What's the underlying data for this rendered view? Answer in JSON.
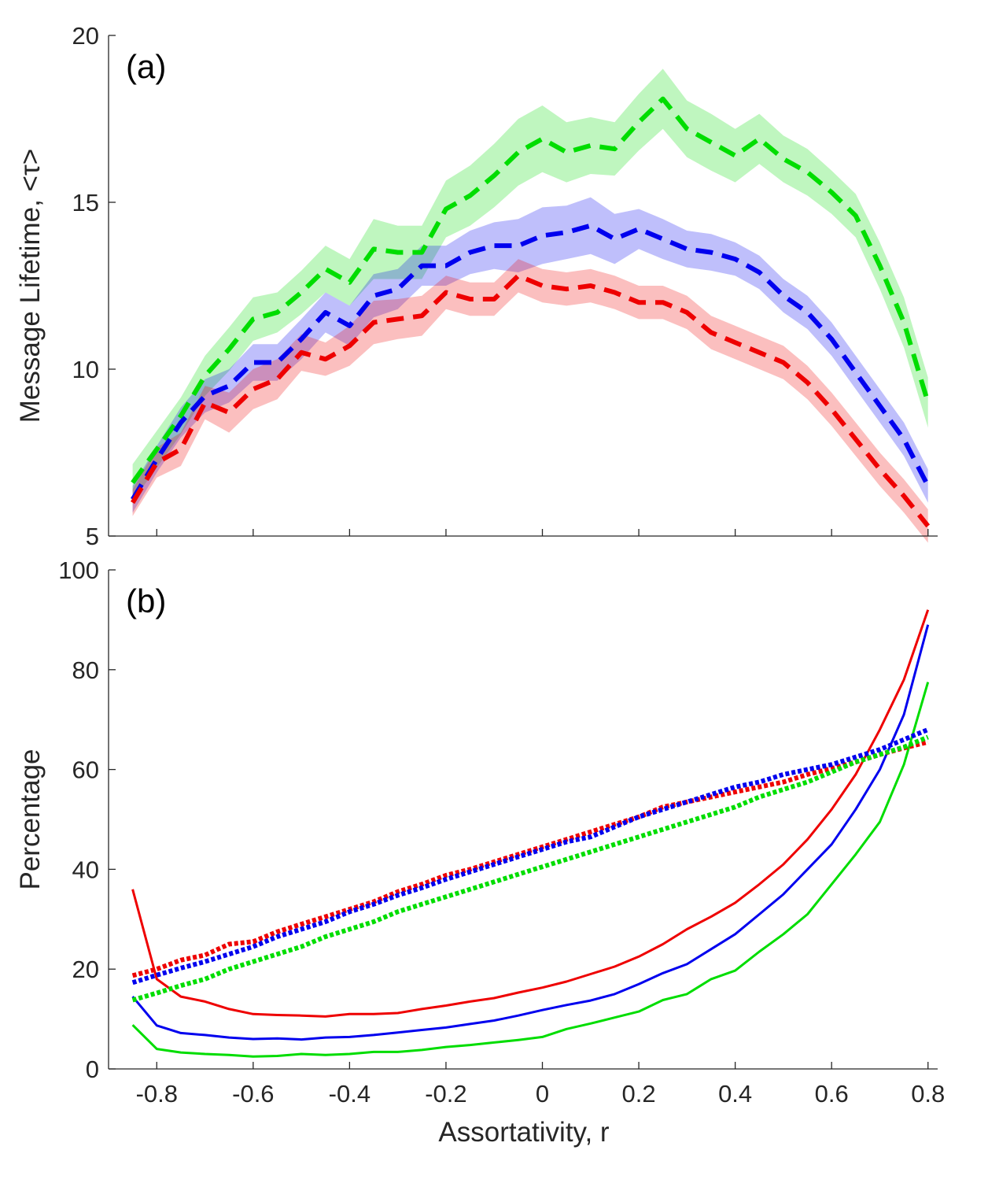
{
  "chart_data": [
    {
      "type": "line",
      "panel_label": "(a)",
      "xlabel": "",
      "ylabel": "Message Lifetime, <τ>",
      "xlim": [
        -0.9,
        0.82
      ],
      "ylim": [
        5,
        20
      ],
      "yticks": [
        5,
        10,
        15,
        20
      ],
      "ytick_labels": [
        "5",
        "10",
        "15",
        "20"
      ],
      "grid": false,
      "x": [
        -0.85,
        -0.8,
        -0.75,
        -0.7,
        -0.65,
        -0.6,
        -0.55,
        -0.5,
        -0.45,
        -0.4,
        -0.35,
        -0.3,
        -0.25,
        -0.2,
        -0.15,
        -0.1,
        -0.05,
        0,
        0.05,
        0.1,
        0.15,
        0.2,
        0.25,
        0.3,
        0.35,
        0.4,
        0.45,
        0.5,
        0.55,
        0.6,
        0.65,
        0.7,
        0.75,
        0.8
      ],
      "series": [
        {
          "name": "green dashed",
          "color": "#00dd00",
          "style": "dashed",
          "values": [
            6.6,
            7.6,
            8.6,
            9.8,
            10.6,
            11.5,
            11.7,
            12.3,
            13.0,
            12.6,
            13.6,
            13.5,
            13.5,
            14.8,
            15.2,
            15.8,
            16.5,
            16.9,
            16.5,
            16.7,
            16.6,
            17.4,
            18.1,
            17.2,
            16.8,
            16.4,
            16.9,
            16.3,
            15.9,
            15.3,
            14.6,
            13.1,
            11.4,
            9.0
          ],
          "band_half_width": [
            0.55,
            0.55,
            0.55,
            0.6,
            0.65,
            0.65,
            0.6,
            0.65,
            0.7,
            0.7,
            0.9,
            0.8,
            0.8,
            0.85,
            0.9,
            0.95,
            1.0,
            1.0,
            0.9,
            0.85,
            0.8,
            0.85,
            0.9,
            0.85,
            0.85,
            0.8,
            0.75,
            0.7,
            0.7,
            0.65,
            0.65,
            0.7,
            0.75,
            0.75
          ]
        },
        {
          "name": "blue dashed",
          "color": "#0000ee",
          "style": "dashed",
          "values": [
            6.1,
            7.3,
            8.4,
            9.2,
            9.5,
            10.2,
            10.2,
            10.9,
            11.7,
            11.3,
            12.2,
            12.4,
            13.1,
            13.1,
            13.5,
            13.7,
            13.7,
            14.0,
            14.1,
            14.3,
            13.9,
            14.2,
            13.9,
            13.6,
            13.5,
            13.3,
            12.9,
            12.2,
            11.7,
            10.9,
            9.9,
            8.9,
            7.9,
            6.5
          ],
          "band_half_width": [
            0.4,
            0.4,
            0.45,
            0.5,
            0.5,
            0.55,
            0.55,
            0.6,
            0.6,
            0.6,
            0.65,
            0.6,
            0.6,
            0.6,
            0.65,
            0.7,
            0.8,
            0.85,
            0.8,
            0.85,
            0.75,
            0.6,
            0.6,
            0.55,
            0.55,
            0.5,
            0.5,
            0.5,
            0.5,
            0.5,
            0.5,
            0.5,
            0.5,
            0.5
          ]
        },
        {
          "name": "red dashed",
          "color": "#ee0000",
          "style": "dashed",
          "values": [
            6.0,
            7.2,
            7.6,
            9.0,
            8.7,
            9.4,
            9.7,
            10.5,
            10.3,
            10.7,
            11.4,
            11.5,
            11.6,
            12.3,
            12.1,
            12.1,
            12.8,
            12.5,
            12.4,
            12.5,
            12.3,
            12.0,
            12.0,
            11.7,
            11.1,
            10.8,
            10.5,
            10.2,
            9.6,
            8.8,
            7.9,
            7.0,
            6.2,
            5.3
          ],
          "band_half_width": [
            0.4,
            0.45,
            0.5,
            0.5,
            0.6,
            0.6,
            0.6,
            0.55,
            0.5,
            0.6,
            0.65,
            0.6,
            0.6,
            0.5,
            0.5,
            0.5,
            0.5,
            0.5,
            0.5,
            0.5,
            0.5,
            0.5,
            0.5,
            0.5,
            0.5,
            0.5,
            0.5,
            0.5,
            0.5,
            0.5,
            0.5,
            0.5,
            0.5,
            0.5
          ]
        }
      ]
    },
    {
      "type": "line",
      "panel_label": "(b)",
      "xlabel": "Assortativity, r",
      "ylabel": "Percentage",
      "xlim": [
        -0.9,
        0.82
      ],
      "ylim": [
        0,
        100
      ],
      "xticks": [
        -0.8,
        -0.6,
        -0.4,
        -0.2,
        0,
        0.2,
        0.4,
        0.6,
        0.8
      ],
      "xtick_labels": [
        "-0.8",
        "-0.6",
        "-0.4",
        "-0.2",
        "0",
        "0.2",
        "0.4",
        "0.6",
        "0.8"
      ],
      "yticks": [
        0,
        20,
        40,
        60,
        80,
        100
      ],
      "ytick_labels": [
        "0",
        "20",
        "40",
        "60",
        "80",
        "100"
      ],
      "grid": false,
      "x": [
        -0.85,
        -0.8,
        -0.75,
        -0.7,
        -0.65,
        -0.6,
        -0.55,
        -0.5,
        -0.45,
        -0.4,
        -0.35,
        -0.3,
        -0.25,
        -0.2,
        -0.15,
        -0.1,
        -0.05,
        0,
        0.05,
        0.1,
        0.15,
        0.2,
        0.25,
        0.3,
        0.35,
        0.4,
        0.45,
        0.5,
        0.55,
        0.6,
        0.65,
        0.7,
        0.75,
        0.8
      ],
      "series": [
        {
          "name": "red solid",
          "color": "#ee0000",
          "style": "solid",
          "values": [
            36,
            18,
            14.5,
            13.5,
            12,
            11,
            10.8,
            10.7,
            10.5,
            11,
            11,
            11.2,
            12,
            12.7,
            13.5,
            14.2,
            15.3,
            16.3,
            17.5,
            19,
            20.5,
            22.5,
            25,
            28,
            30.5,
            33.3,
            37,
            41,
            46,
            52,
            59,
            68,
            78,
            92
          ]
        },
        {
          "name": "blue solid",
          "color": "#0000ee",
          "style": "solid",
          "values": [
            14.5,
            8.7,
            7.2,
            6.8,
            6.3,
            6,
            6.1,
            5.9,
            6.3,
            6.4,
            6.8,
            7.3,
            7.8,
            8.3,
            9,
            9.7,
            10.7,
            11.8,
            12.8,
            13.7,
            15,
            17,
            19.2,
            21,
            24,
            27,
            31,
            35,
            40,
            45,
            52,
            60,
            71,
            89
          ]
        },
        {
          "name": "green solid",
          "color": "#00dd00",
          "style": "solid",
          "values": [
            8.8,
            4,
            3.3,
            3,
            2.8,
            2.5,
            2.6,
            3,
            2.8,
            3,
            3.4,
            3.4,
            3.8,
            4.4,
            4.8,
            5.3,
            5.8,
            6.4,
            8,
            9.1,
            10.3,
            11.5,
            13.8,
            15,
            18,
            19.7,
            23.5,
            27,
            31,
            37,
            43,
            49.5,
            61,
            77.5
          ]
        },
        {
          "name": "red dotted",
          "color": "#ee0000",
          "style": "dotted",
          "values": [
            18.7,
            20,
            21.8,
            22.8,
            25,
            25.5,
            27.5,
            29,
            30.5,
            32,
            33.5,
            35.5,
            37,
            38.8,
            40,
            41.5,
            43,
            44.5,
            46,
            47.5,
            49,
            50.5,
            52.5,
            53.5,
            54.5,
            55.5,
            56.5,
            57.5,
            59,
            60.2,
            61.5,
            63,
            64.3,
            65.5
          ]
        },
        {
          "name": "blue dotted",
          "color": "#0000ee",
          "style": "dotted",
          "values": [
            17.3,
            18.8,
            20.2,
            21.5,
            23,
            24.5,
            26.5,
            28,
            29.5,
            31.5,
            33,
            34.8,
            36.3,
            38,
            39.5,
            41,
            42.5,
            44,
            45.5,
            46.5,
            48.5,
            50.5,
            52,
            53.5,
            55,
            56.5,
            57.5,
            59,
            60,
            61,
            62.5,
            64,
            66,
            68
          ]
        },
        {
          "name": "green dotted",
          "color": "#00dd00",
          "style": "dotted",
          "values": [
            13.8,
            15.2,
            16.7,
            18,
            20,
            21.5,
            23,
            24.5,
            26.5,
            28,
            29.5,
            31.5,
            33,
            34.5,
            36,
            37.5,
            39,
            40.5,
            42,
            43.5,
            45,
            46.5,
            48,
            49.5,
            51,
            52.5,
            54.5,
            56,
            57.5,
            59.5,
            61.5,
            63,
            64.5,
            66.5
          ]
        }
      ]
    }
  ]
}
